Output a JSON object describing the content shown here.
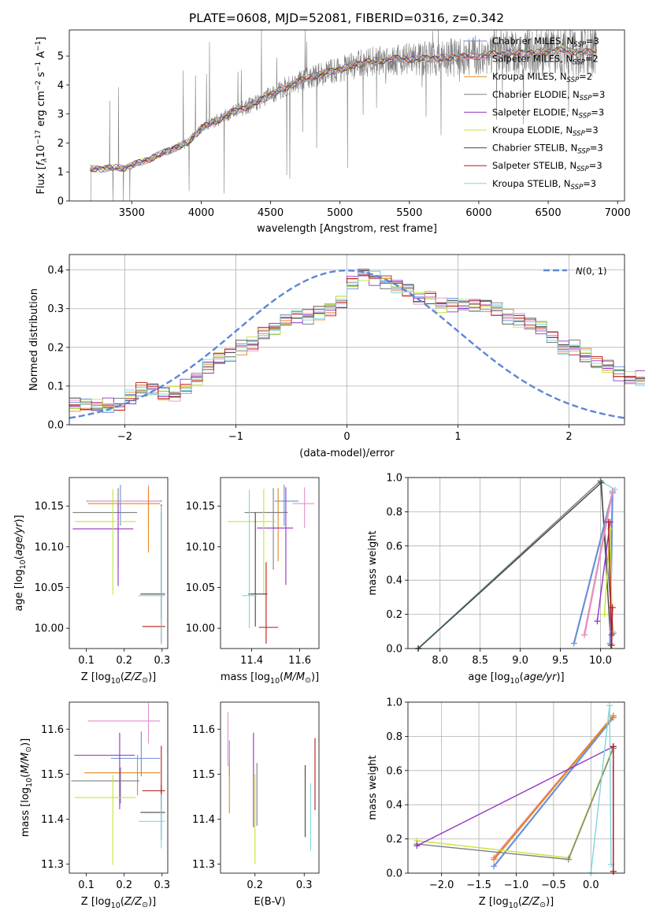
{
  "figure": {
    "title": "PLATE=0608, MJD=52081, FIBERID=0316, z=0.342"
  },
  "colors": {
    "Chabrier MILES": "#6a8fd8",
    "Salpeter MILES": "#e58fc9",
    "Kroupa MILES": "#e6861f",
    "Chabrier ELODIE": "#7f7f7f",
    "Salpeter ELODIE": "#9332c4",
    "Kroupa ELODIE": "#c7e33a",
    "Chabrier STELIB": "#444444",
    "Salpeter STELIB": "#b81818",
    "Kroupa STELIB": "#7fd6e0",
    "gaussian": "#5d86d6"
  },
  "chart_data": [
    {
      "id": "spectrum",
      "type": "line",
      "title": "PLATE=0608, MJD=52081, FIBERID=0316, z=0.342",
      "xlabel": "wavelength [Angstrom, rest frame]",
      "ylabel_prefix": "Flux [",
      "xlim": [
        3050,
        7050
      ],
      "ylim": [
        0,
        5.9
      ],
      "xticks": [
        3500,
        4000,
        4500,
        5000,
        5500,
        6000,
        6500,
        7000
      ],
      "yticks": [
        0,
        1,
        2,
        3,
        4,
        5
      ],
      "grid": false,
      "legend_position": "upper-right",
      "legend": [
        {
          "model": "Chabrier MILES",
          "nssp": "3"
        },
        {
          "model": "Salpeter MILES",
          "nssp": "2"
        },
        {
          "model": "Kroupa MILES",
          "nssp": "2"
        },
        {
          "model": "Chabrier ELODIE",
          "nssp": "3"
        },
        {
          "model": "Salpeter ELODIE",
          "nssp": "3"
        },
        {
          "model": "Kroupa ELODIE",
          "nssp": "3"
        },
        {
          "model": "Chabrier STELIB",
          "nssp": "3"
        },
        {
          "model": "Salpeter STELIB",
          "nssp": "3"
        },
        {
          "model": "Kroupa STELIB",
          "nssp": "3"
        }
      ],
      "data_range": [
        3200,
        6850
      ],
      "continuum": [
        [
          3200,
          1.1
        ],
        [
          3450,
          1.15
        ],
        [
          3550,
          1.3
        ],
        [
          3700,
          1.6
        ],
        [
          3900,
          2.0
        ],
        [
          4000,
          2.5
        ],
        [
          4200,
          3.0
        ],
        [
          4400,
          3.4
        ],
        [
          4600,
          3.9
        ],
        [
          4800,
          4.3
        ],
        [
          5000,
          4.55
        ],
        [
          5200,
          4.8
        ],
        [
          5400,
          4.9
        ],
        [
          5600,
          4.9
        ],
        [
          5800,
          4.95
        ],
        [
          6000,
          5.0
        ],
        [
          6200,
          5.1
        ],
        [
          6400,
          5.1
        ],
        [
          6600,
          5.2
        ],
        [
          6850,
          5.1
        ]
      ]
    },
    {
      "id": "residuals",
      "type": "line",
      "xlabel": "(data-model)/error",
      "ylabel": "Normed distribution",
      "xlim": [
        -2.5,
        2.5
      ],
      "ylim": [
        0,
        0.44
      ],
      "xticks": [
        -2,
        -1,
        0,
        1,
        2
      ],
      "xticklabels": [
        "−2",
        "−1",
        "0",
        "1",
        "2"
      ],
      "yticks": [
        0.0,
        0.1,
        0.2,
        0.3,
        0.4
      ],
      "yticklabels": [
        "0.0",
        "0.1",
        "0.2",
        "0.3",
        "0.4"
      ],
      "grid": true,
      "legend_position": "upper-right",
      "gaussian_label": "N(0, 1)",
      "bin_width": 0.1,
      "base_hist": [
        0.05,
        0.05,
        0.05,
        0.05,
        0.05,
        0.07,
        0.09,
        0.09,
        0.08,
        0.08,
        0.1,
        0.12,
        0.15,
        0.17,
        0.18,
        0.2,
        0.21,
        0.24,
        0.25,
        0.27,
        0.28,
        0.28,
        0.29,
        0.3,
        0.32,
        0.37,
        0.39,
        0.38,
        0.37,
        0.36,
        0.35,
        0.33,
        0.33,
        0.31,
        0.31,
        0.31,
        0.31,
        0.31,
        0.3,
        0.28,
        0.27,
        0.26,
        0.25,
        0.23,
        0.2,
        0.2,
        0.18,
        0.16,
        0.15,
        0.13,
        0.12,
        0.12,
        0.12,
        0.11,
        0.1,
        0.1,
        0.1,
        0.08,
        0.07,
        0.06,
        0.06,
        0.06,
        0.05,
        0.05,
        0.05,
        0.05,
        0.05,
        0.05,
        0.05,
        0.05
      ]
    },
    {
      "id": "age-vs-Z",
      "type": "scatter",
      "xlabel": "Z [log10(Z/Z⊙)]",
      "ylabel": "age  [log10(age/yr)]",
      "xlim": [
        0.055,
        0.315
      ],
      "ylim": [
        9.975,
        10.185
      ],
      "xticks": [
        0.1,
        0.2,
        0.3
      ],
      "yticks": [
        10.0,
        10.05,
        10.1,
        10.15
      ],
      "yticklabels": [
        "10.00",
        "10.05",
        "10.10",
        "10.15"
      ],
      "grid": false,
      "points": [
        {
          "model": "Chabrier MILES",
          "x": 0.19,
          "y": 10.156,
          "xerr": [
            0.09,
            0.11
          ],
          "yerr": [
            0.03,
            0.02
          ]
        },
        {
          "model": "Salpeter MILES",
          "x": 0.264,
          "y": 10.156,
          "xerr": [
            0.16,
            0.03
          ],
          "yerr": [
            0.03,
            0.02
          ]
        },
        {
          "model": "Kroupa MILES",
          "x": 0.264,
          "y": 10.153,
          "xerr": [
            0.16,
            0.03
          ],
          "yerr": [
            0.06,
            0.02
          ]
        },
        {
          "model": "Chabrier ELODIE",
          "x": 0.184,
          "y": 10.142,
          "xerr": [
            0.12,
            0.05
          ],
          "yerr": [
            0.07,
            0.03
          ]
        },
        {
          "model": "Salpeter ELODIE",
          "x": 0.184,
          "y": 10.122,
          "xerr": [
            0.12,
            0.04
          ],
          "yerr": [
            0.07,
            0.03
          ]
        },
        {
          "model": "Kroupa ELODIE",
          "x": 0.17,
          "y": 10.131,
          "xerr": [
            0.1,
            0.06
          ],
          "yerr": [
            0.09,
            0.04
          ]
        },
        {
          "model": "Chabrier STELIB",
          "x": 0.298,
          "y": 10.042,
          "xerr": [
            0.055,
            0.01
          ],
          "yerr": [
            0.03,
            0.1
          ]
        },
        {
          "model": "Salpeter STELIB",
          "x": 0.298,
          "y": 10.002,
          "xerr": [
            0.05,
            0.01
          ],
          "yerr": [
            0.02,
            0.15
          ]
        },
        {
          "model": "Kroupa STELIB",
          "x": 0.298,
          "y": 10.04,
          "xerr": [
            0.06,
            0.01
          ],
          "yerr": [
            0.06,
            0.11
          ]
        }
      ]
    },
    {
      "id": "age-vs-mass",
      "type": "scatter",
      "xlabel": "mass [log10(M/M⊙)]",
      "xlim": [
        11.27,
        11.68
      ],
      "ylim": [
        9.975,
        10.185
      ],
      "xticks": [
        11.4,
        11.6
      ],
      "yticks": [
        10.0,
        10.05,
        10.1,
        10.15
      ],
      "yticklabels": [
        "10.00",
        "10.05",
        "10.10",
        "10.15"
      ],
      "grid": false,
      "points": [
        {
          "model": "Chabrier MILES",
          "x": 11.535,
          "y": 10.156,
          "xerr": [
            0.04,
            0.06
          ],
          "yerr": [
            0.03,
            0.02
          ]
        },
        {
          "model": "Salpeter MILES",
          "x": 11.62,
          "y": 10.153,
          "xerr": [
            0.05,
            0.04
          ],
          "yerr": [
            0.03,
            0.02
          ]
        },
        {
          "model": "Kroupa MILES",
          "x": 11.51,
          "y": 10.142,
          "xerr": [
            0.1,
            0.04
          ],
          "yerr": [
            0.06,
            0.03
          ]
        },
        {
          "model": "Chabrier ELODIE",
          "x": 11.49,
          "y": 10.142,
          "xerr": [
            0.12,
            0.06
          ],
          "yerr": [
            0.07,
            0.03
          ]
        },
        {
          "model": "Salpeter ELODIE",
          "x": 11.542,
          "y": 10.123,
          "xerr": [
            0.12,
            0.03
          ],
          "yerr": [
            0.07,
            0.05
          ]
        },
        {
          "model": "Kroupa ELODIE",
          "x": 11.45,
          "y": 10.131,
          "xerr": [
            0.15,
            0.05
          ],
          "yerr": [
            0.09,
            0.04
          ]
        },
        {
          "model": "Chabrier STELIB",
          "x": 11.415,
          "y": 10.042,
          "xerr": [
            0.03,
            0.05
          ],
          "yerr": [
            0.04,
            0.1
          ]
        },
        {
          "model": "Salpeter STELIB",
          "x": 11.46,
          "y": 10.001,
          "xerr": [
            0.03,
            0.05
          ],
          "yerr": [
            0.02,
            0.08
          ]
        },
        {
          "model": "Kroupa STELIB",
          "x": 11.39,
          "y": 10.04,
          "xerr": [
            0.03,
            0.03
          ],
          "yerr": [
            0.04,
            0.13
          ]
        }
      ]
    },
    {
      "id": "weight-vs-age",
      "type": "line",
      "xlabel": "age  [log10(age/yr)]",
      "ylabel": "mass weight",
      "xlim": [
        7.6,
        10.3
      ],
      "ylim": [
        0,
        1
      ],
      "xticks": [
        8.0,
        8.5,
        9.0,
        9.5,
        10.0
      ],
      "xticklabels": [
        "8.0",
        "8.5",
        "9.0",
        "9.5",
        "10.0"
      ],
      "yticks": [
        0.0,
        0.2,
        0.4,
        0.6,
        0.8,
        1.0
      ],
      "yticklabels": [
        "0.0",
        "0.2",
        "0.4",
        "0.6",
        "0.8",
        "1.0"
      ],
      "grid": true,
      "series": [
        {
          "model": "Kroupa STELIB",
          "x": [
            7.72,
            10.0,
            10.18
          ],
          "y": [
            0.0,
            0.98,
            0.93
          ]
        },
        {
          "model": "Chabrier ELODIE",
          "x": [
            7.73,
            10.0,
            10.16
          ],
          "y": [
            0.0,
            0.98,
            0.09
          ]
        },
        {
          "model": "Chabrier STELIB",
          "x": [
            7.73,
            10.01,
            10.13
          ],
          "y": [
            0.0,
            0.97,
            0.02
          ]
        },
        {
          "model": "Chabrier MILES",
          "x": [
            9.67,
            10.15,
            10.12
          ],
          "y": [
            0.03,
            0.91,
            0.03
          ]
        },
        {
          "model": "Kroupa MILES",
          "x": [
            9.8,
            10.15
          ],
          "y": [
            0.08,
            0.92
          ]
        },
        {
          "model": "Salpeter MILES",
          "x": [
            9.8,
            10.15
          ],
          "y": [
            0.08,
            0.92
          ]
        },
        {
          "model": "Salpeter ELODIE",
          "x": [
            9.96,
            10.12,
            10.14
          ],
          "y": [
            0.16,
            0.74,
            0.08
          ]
        },
        {
          "model": "Kroupa ELODIE",
          "x": [
            10.05,
            10.12,
            10.15
          ],
          "y": [
            0.2,
            0.7,
            0.1
          ]
        },
        {
          "model": "Salpeter STELIB",
          "x": [
            10.1,
            10.14,
            10.15
          ],
          "y": [
            0.74,
            0.02,
            0.24
          ]
        }
      ]
    },
    {
      "id": "mass-vs-Z",
      "type": "scatter",
      "xlabel": "Z [log10(Z/Z⊙)]",
      "ylabel": "mass [log10(M/M⊙)]",
      "xlim": [
        0.055,
        0.315
      ],
      "ylim": [
        11.28,
        11.66
      ],
      "xticks": [
        0.1,
        0.2,
        0.3
      ],
      "yticks": [
        11.3,
        11.4,
        11.5,
        11.6
      ],
      "grid": false,
      "points": [
        {
          "model": "Chabrier MILES",
          "x": 0.245,
          "y": 11.535,
          "xerr": [
            0.08,
            0.05
          ],
          "yerr": [
            0.04,
            0.06
          ]
        },
        {
          "model": "Salpeter MILES",
          "x": 0.264,
          "y": 11.618,
          "xerr": [
            0.16,
            0.03
          ],
          "yerr": [
            0.05,
            0.04
          ]
        },
        {
          "model": "Kroupa MILES",
          "x": 0.235,
          "y": 11.503,
          "xerr": [
            0.14,
            0.06
          ],
          "yerr": [
            0.05,
            0.04
          ]
        },
        {
          "model": "Chabrier ELODIE",
          "x": 0.19,
          "y": 11.485,
          "xerr": [
            0.13,
            0.05
          ],
          "yerr": [
            0.05,
            0.03
          ]
        },
        {
          "model": "Salpeter ELODIE",
          "x": 0.188,
          "y": 11.542,
          "xerr": [
            0.12,
            0.04
          ],
          "yerr": [
            0.12,
            0.05
          ]
        },
        {
          "model": "Kroupa ELODIE",
          "x": 0.17,
          "y": 11.448,
          "xerr": [
            0.1,
            0.06
          ],
          "yerr": [
            0.15,
            0.05
          ]
        },
        {
          "model": "Chabrier STELIB",
          "x": 0.298,
          "y": 11.415,
          "xerr": [
            0.055,
            0.01
          ],
          "yerr": [
            0.06,
            0.06
          ]
        },
        {
          "model": "Salpeter STELIB",
          "x": 0.298,
          "y": 11.463,
          "xerr": [
            0.05,
            0.01
          ],
          "yerr": [
            0.04,
            0.1
          ]
        },
        {
          "model": "Kroupa STELIB",
          "x": 0.298,
          "y": 11.395,
          "xerr": [
            0.06,
            0.01
          ],
          "yerr": [
            0.06,
            0.06
          ]
        }
      ]
    },
    {
      "id": "mass-vs-ebv",
      "type": "scatter",
      "xlabel": "E(B-V)",
      "xlim": [
        0.13,
        0.33
      ],
      "ylim": [
        11.28,
        11.66
      ],
      "xticks": [
        0.2,
        0.3
      ],
      "yticks": [
        11.3,
        11.4,
        11.5,
        11.6
      ],
      "grid": false,
      "points": [
        {
          "model": "Chabrier MILES",
          "x": 0.148,
          "y": 11.535,
          "yerr": [
            0.04,
            0.04
          ]
        },
        {
          "model": "Salpeter MILES",
          "x": 0.145,
          "y": 11.618,
          "yerr": [
            0.1,
            0.02
          ]
        },
        {
          "model": "Kroupa MILES",
          "x": 0.148,
          "y": 11.503,
          "yerr": [
            0.09,
            0.02
          ]
        },
        {
          "model": "Chabrier ELODIE",
          "x": 0.204,
          "y": 11.485,
          "yerr": [
            0.1,
            0.04
          ]
        },
        {
          "model": "Salpeter ELODIE",
          "x": 0.197,
          "y": 11.542,
          "yerr": [
            0.16,
            0.05
          ]
        },
        {
          "model": "Kroupa ELODIE",
          "x": 0.2,
          "y": 11.45,
          "yerr": [
            0.15,
            0.05
          ]
        },
        {
          "model": "Chabrier STELIB",
          "x": 0.302,
          "y": 11.44,
          "yerr": [
            0.08,
            0.08
          ]
        },
        {
          "model": "Salpeter STELIB",
          "x": 0.322,
          "y": 11.5,
          "yerr": [
            0.08,
            0.08
          ]
        },
        {
          "model": "Kroupa STELIB",
          "x": 0.313,
          "y": 11.4,
          "yerr": [
            0.07,
            0.08
          ]
        }
      ]
    },
    {
      "id": "weight-vs-Z",
      "type": "line",
      "xlabel": "Z [log10(Z/Z⊙)]",
      "ylabel": "mass weight",
      "xlim": [
        -2.45,
        0.45
      ],
      "ylim": [
        0,
        1
      ],
      "xticks": [
        -2.0,
        -1.5,
        -1.0,
        -0.5,
        0.0
      ],
      "xticklabels": [
        "−2.0",
        "−1.5",
        "−1.0",
        "−0.5",
        "0.0"
      ],
      "yticks": [
        0.0,
        0.2,
        0.4,
        0.6,
        0.8,
        1.0
      ],
      "yticklabels": [
        "0.0",
        "0.2",
        "0.4",
        "0.6",
        "0.8",
        "1.0"
      ],
      "grid": true,
      "series": [
        {
          "model": "Chabrier MILES",
          "x": [
            -1.3,
            0.3
          ],
          "y": [
            0.04,
            0.91
          ]
        },
        {
          "model": "Salpeter MILES",
          "x": [
            -1.3,
            0.3
          ],
          "y": [
            0.09,
            0.92
          ]
        },
        {
          "model": "Kroupa MILES",
          "x": [
            -1.3,
            0.3
          ],
          "y": [
            0.08,
            0.92
          ]
        },
        {
          "model": "Kroupa ELODIE",
          "x": [
            -2.33,
            -0.3,
            0.3
          ],
          "y": [
            0.19,
            0.09,
            0.74
          ]
        },
        {
          "model": "Chabrier ELODIE",
          "x": [
            -2.33,
            -0.3,
            0.3
          ],
          "y": [
            0.17,
            0.08,
            0.73
          ]
        },
        {
          "model": "Salpeter ELODIE",
          "x": [
            -2.33,
            0.3
          ],
          "y": [
            0.16,
            0.74
          ]
        },
        {
          "model": "Kroupa STELIB",
          "x": [
            0.0,
            0.25,
            0.27
          ],
          "y": [
            0.0,
            0.98,
            0.05
          ]
        },
        {
          "model": "Chabrier STELIB",
          "x": [
            0.3,
            0.3
          ],
          "y": [
            0.01,
            0.74
          ]
        },
        {
          "model": "Salpeter STELIB",
          "x": [
            0.3,
            0.3
          ],
          "y": [
            0.01,
            0.74
          ]
        }
      ]
    }
  ]
}
